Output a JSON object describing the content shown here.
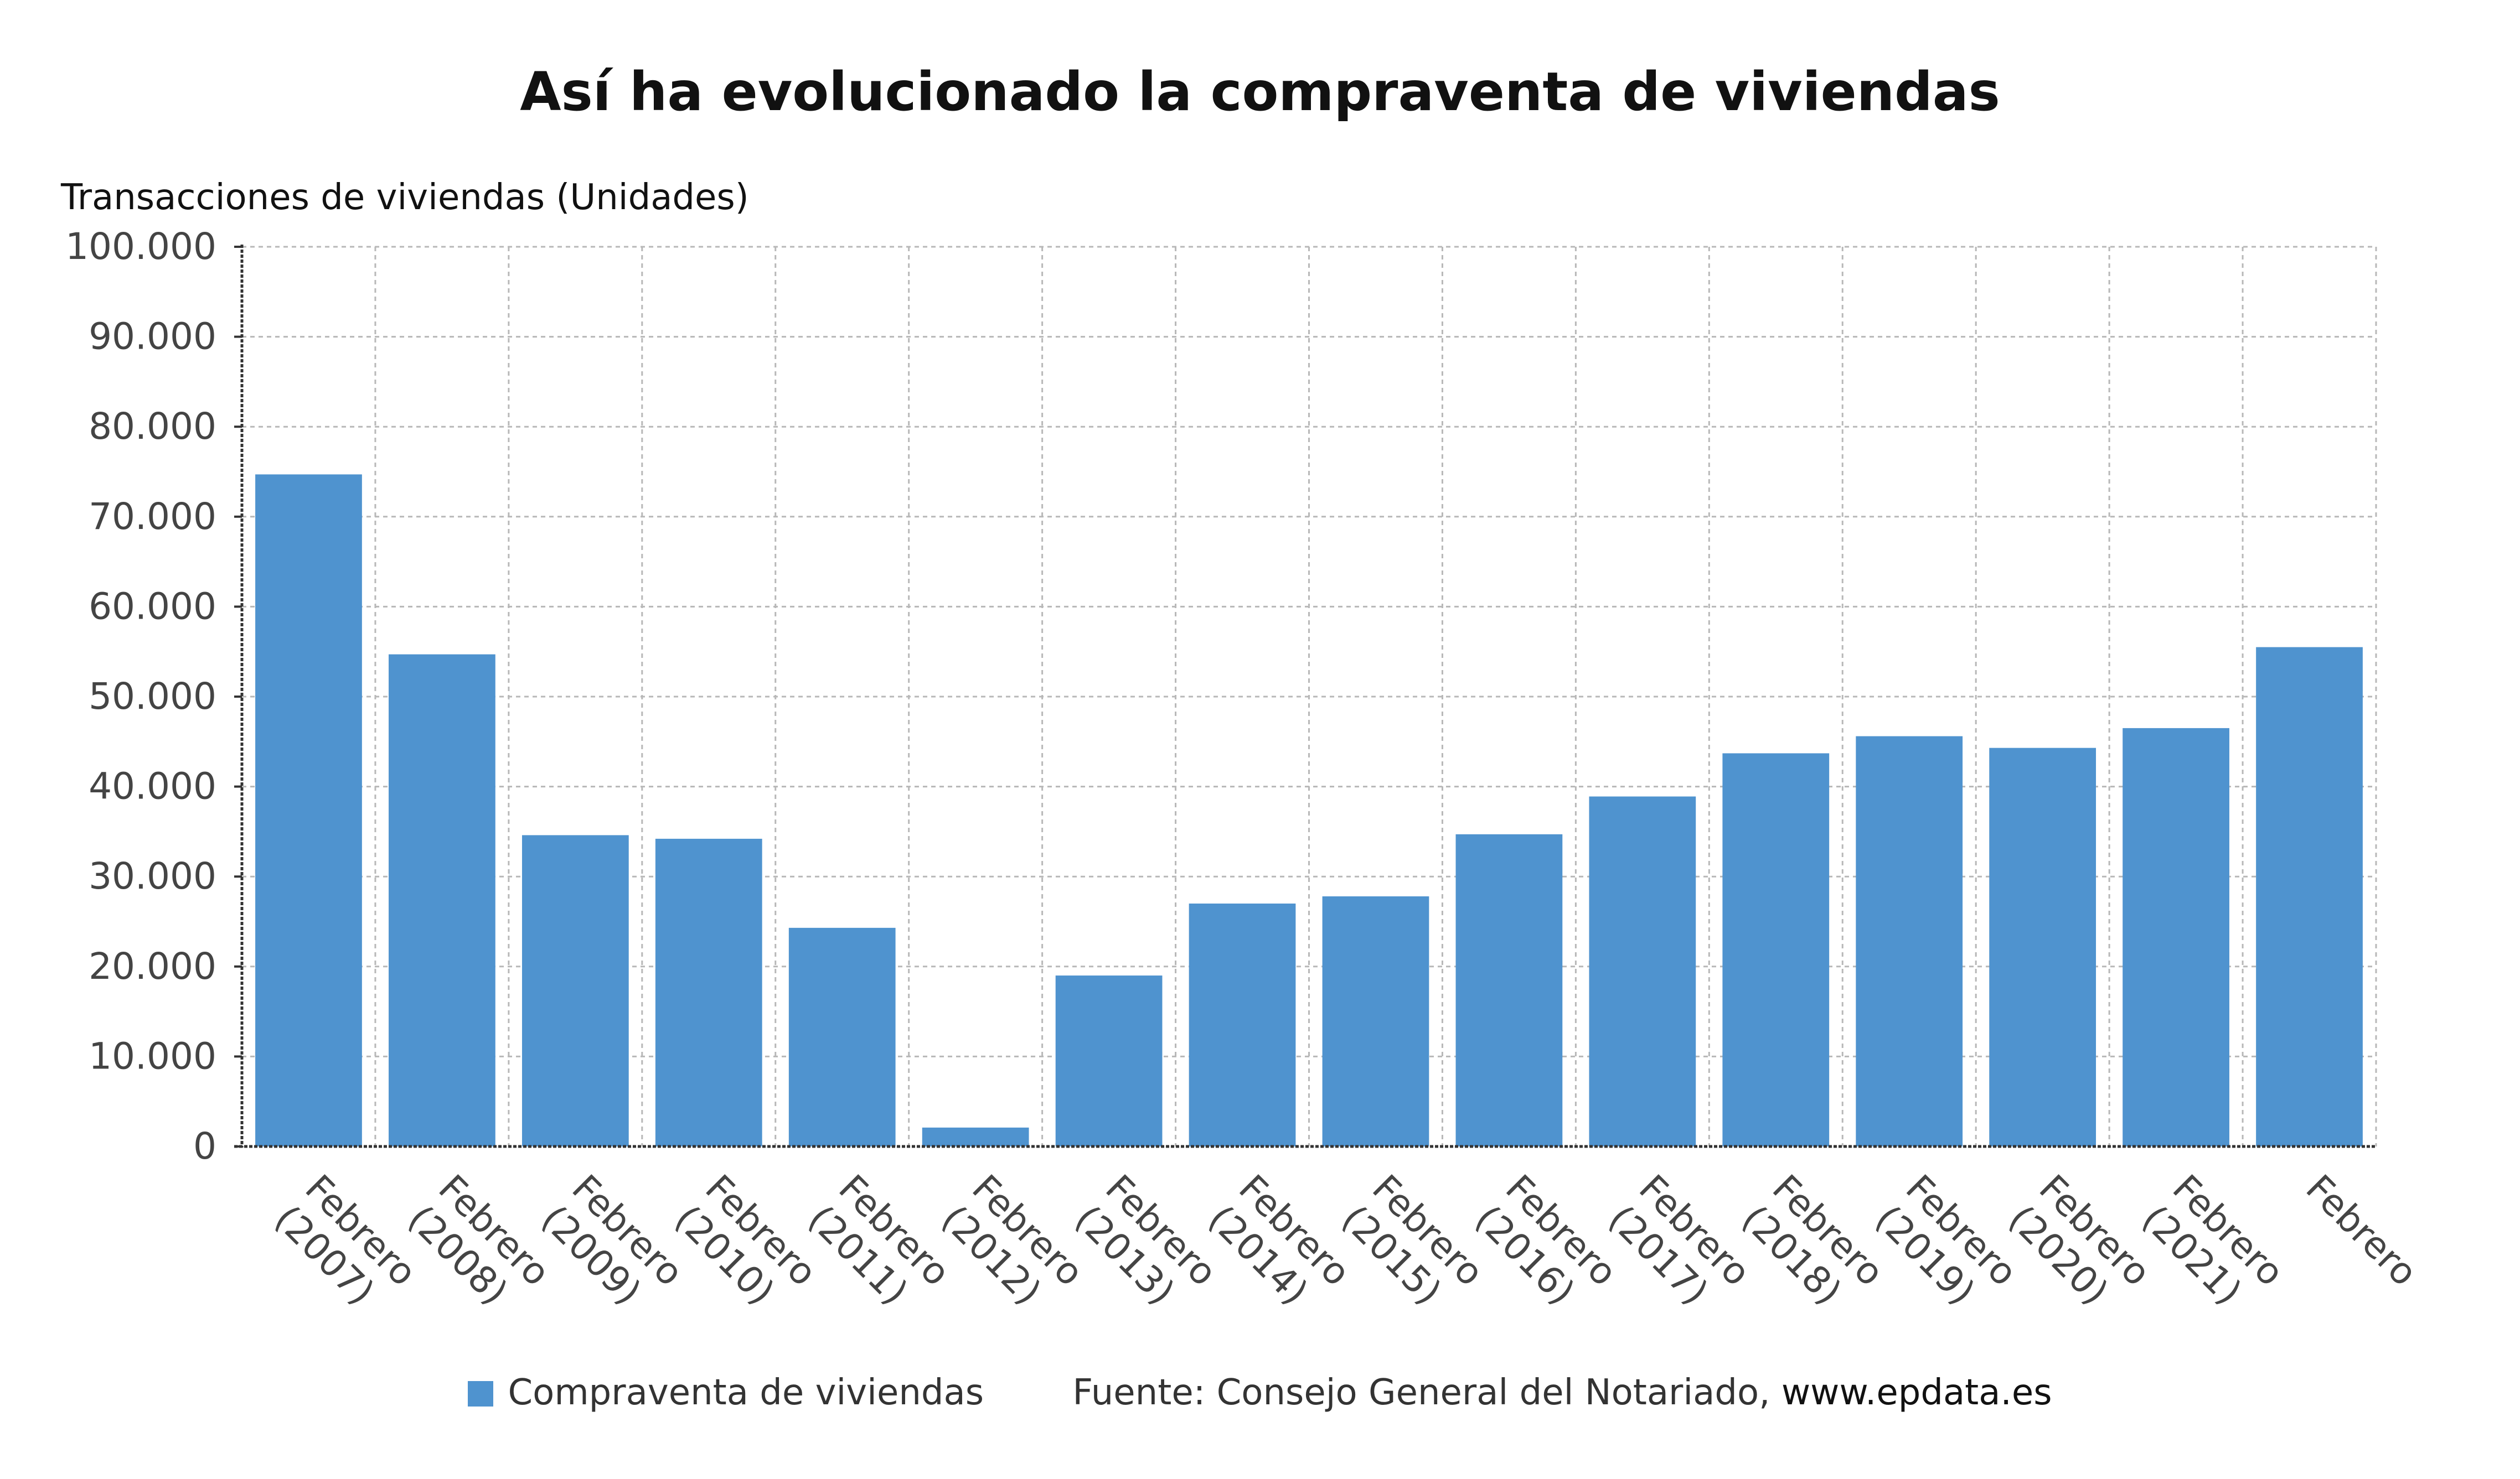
{
  "title": "Así ha evolucionado la compraventa de viviendas",
  "colors": {
    "bar": "#4f93cf",
    "grid": "#b8b8b8",
    "axis": "#333333",
    "text": "#444444"
  },
  "legend": {
    "series_label": "Compraventa de viviendas",
    "source_prefix": "Fuente: Consejo General del Notariado, ",
    "source_site": "www.epdata.es"
  },
  "chart_data": {
    "type": "bar",
    "title": "Así ha evolucionado la compraventa de viviendas",
    "ylabel": "Transacciones de viviendas (Unidades)",
    "xlabel": "",
    "ylim": [
      0,
      100000
    ],
    "y_ticks": [
      0,
      10000,
      20000,
      30000,
      40000,
      50000,
      60000,
      70000,
      80000,
      90000,
      100000
    ],
    "y_tick_labels": [
      "0",
      "10.000",
      "20.000",
      "30.000",
      "40.000",
      "50.000",
      "60.000",
      "70.000",
      "80.000",
      "90.000",
      "100.000"
    ],
    "grid": true,
    "legend_position": "bottom",
    "categories": [
      "Febrero (2007)",
      "Febrero (2008)",
      "Febrero (2009)",
      "Febrero (2010)",
      "Febrero (2011)",
      "Febrero (2012)",
      "Febrero (2013)",
      "Febrero (2014)",
      "Febrero (2015)",
      "Febrero (2016)",
      "Febrero (2017)",
      "Febrero (2018)",
      "Febrero (2019)",
      "Febrero (2020)",
      "Febrero (2021)",
      "Febrero"
    ],
    "series": [
      {
        "name": "Compraventa de viviendas",
        "values": [
          74700,
          54700,
          34600,
          34200,
          24300,
          2100,
          19000,
          27000,
          27800,
          34700,
          38900,
          43700,
          45600,
          44300,
          46500,
          55500
        ]
      }
    ]
  }
}
